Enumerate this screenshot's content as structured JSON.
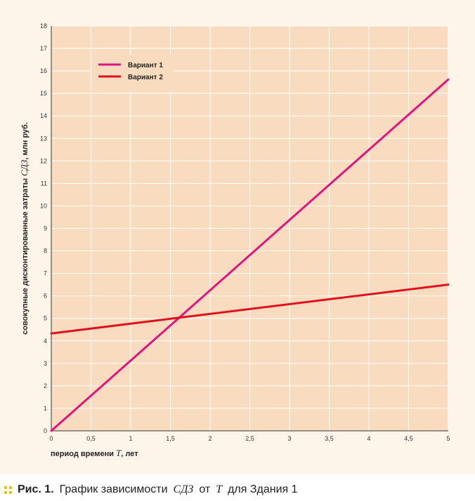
{
  "chart_data": {
    "type": "line",
    "x": [
      0,
      5
    ],
    "series": [
      {
        "name": "Вариант 1",
        "color": "#e0157f",
        "values": [
          0,
          15.62
        ]
      },
      {
        "name": "Вариант 2",
        "color": "#e0101f",
        "values": [
          4.33,
          6.5
        ]
      }
    ],
    "xlim": [
      0,
      5
    ],
    "ylim": [
      0,
      18
    ],
    "x_ticks": [
      "0",
      "0,5",
      "1",
      "1,5",
      "2",
      "2,5",
      "3",
      "3,5",
      "4",
      "4,5",
      "5"
    ],
    "y_ticks": [
      "0",
      "1",
      "2",
      "3",
      "4",
      "5",
      "6",
      "7",
      "8",
      "9",
      "10",
      "11",
      "12",
      "13",
      "14",
      "15",
      "16",
      "17",
      "18"
    ],
    "xlabel": {
      "pre": "период времени ",
      "var": "T",
      "post": ", лет"
    },
    "ylabel": {
      "pre": "совокупные дисконтированные затраты ",
      "var": "СДЗ",
      "post": ", млн руб."
    },
    "legend_position": "top-left",
    "grid": true,
    "plot_background": "#f9dcbf",
    "grid_color": "#ffffff"
  },
  "caption": {
    "number": "Рис. 1.",
    "text_1": "График зависимости",
    "var_1": "СДЗ",
    "text_2": "от",
    "var_2": "T",
    "text_3": "для Здания 1"
  }
}
